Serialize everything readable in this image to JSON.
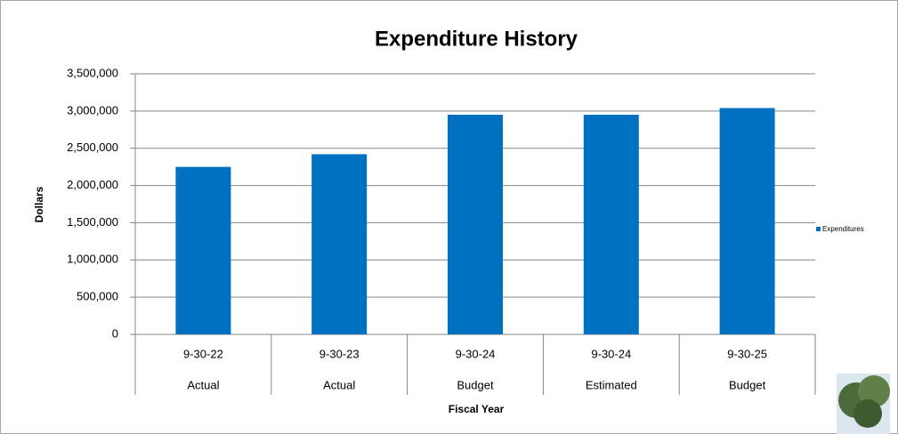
{
  "chart_data": {
    "type": "bar",
    "title": "Expenditure History",
    "x_label": "Fiscal Year",
    "y_label": "Dollars",
    "categories": [
      [
        "9-30-22",
        "Actual"
      ],
      [
        "9-30-23",
        "Actual"
      ],
      [
        "9-30-24",
        "Budget"
      ],
      [
        "9-30-24",
        "Estimated"
      ],
      [
        "9-30-25",
        "Budget"
      ]
    ],
    "series": [
      {
        "name": "Expenditures",
        "color": "#0070c0",
        "values": [
          2250000,
          2420000,
          2950000,
          2950000,
          3040000
        ]
      }
    ],
    "ylim": [
      0,
      3500000
    ],
    "yticks": [
      0,
      {
        "value": 500000,
        "label": "500,000"
      },
      {
        "value": 1000000,
        "label": "1,000,000"
      },
      {
        "value": 1500000,
        "label": "1,500,000"
      },
      {
        "value": 2000000,
        "label": "2,000,000"
      },
      {
        "value": 2500000,
        "label": "2,500,000"
      },
      {
        "value": 3000000,
        "label": "3,000,000"
      },
      {
        "value": 3500000,
        "label": "3,500,000"
      }
    ],
    "grid": true,
    "legend": "right"
  }
}
